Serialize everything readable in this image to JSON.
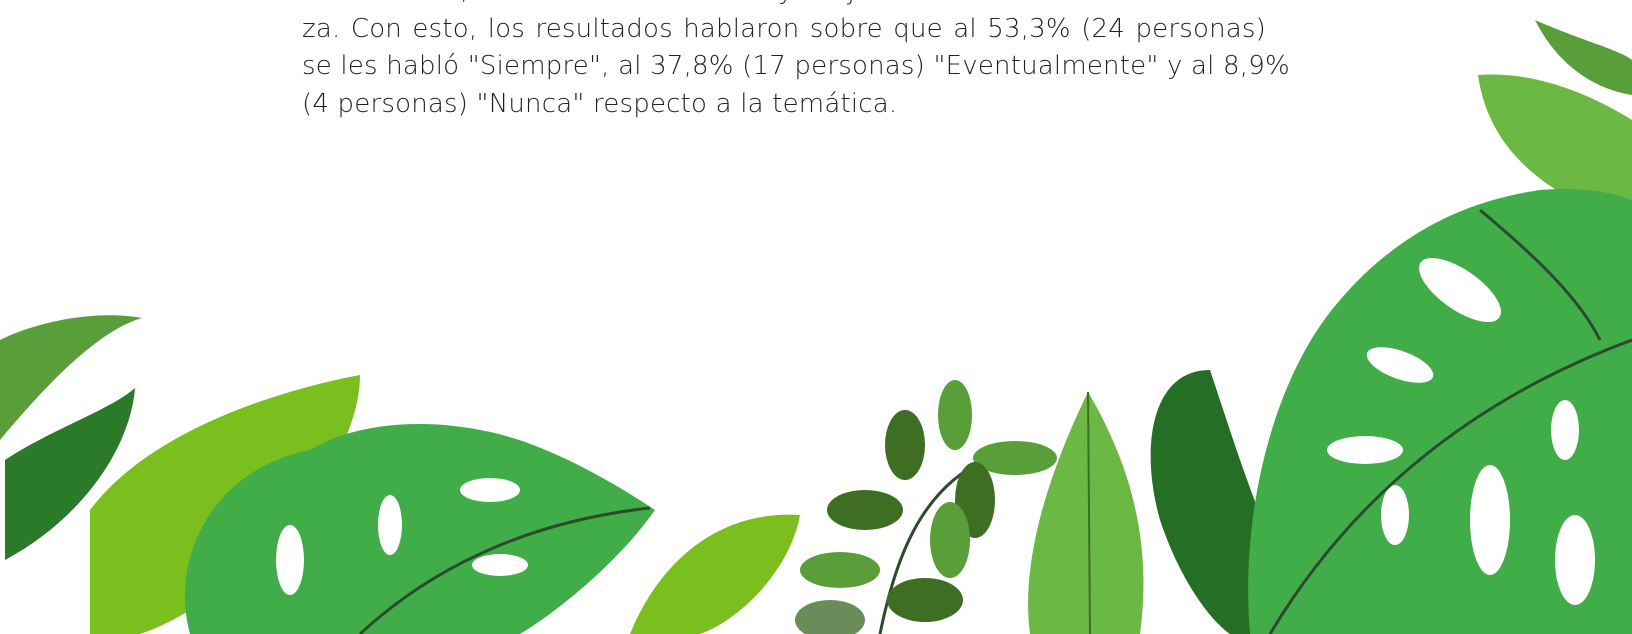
{
  "paragraph": {
    "lines": [
      "individuales, fomentar la inclusión y mejorar la calidad de la enseñan-",
      "za. Con esto, los resultados hablaron sobre que al 53,3% (24 personas)",
      "se les habló \"Siempre\", al 37,8% (17 personas) \"Eventualmente\" y al 8,9%",
      "(4 personas) \"Nunca\" respecto a la temática."
    ]
  }
}
